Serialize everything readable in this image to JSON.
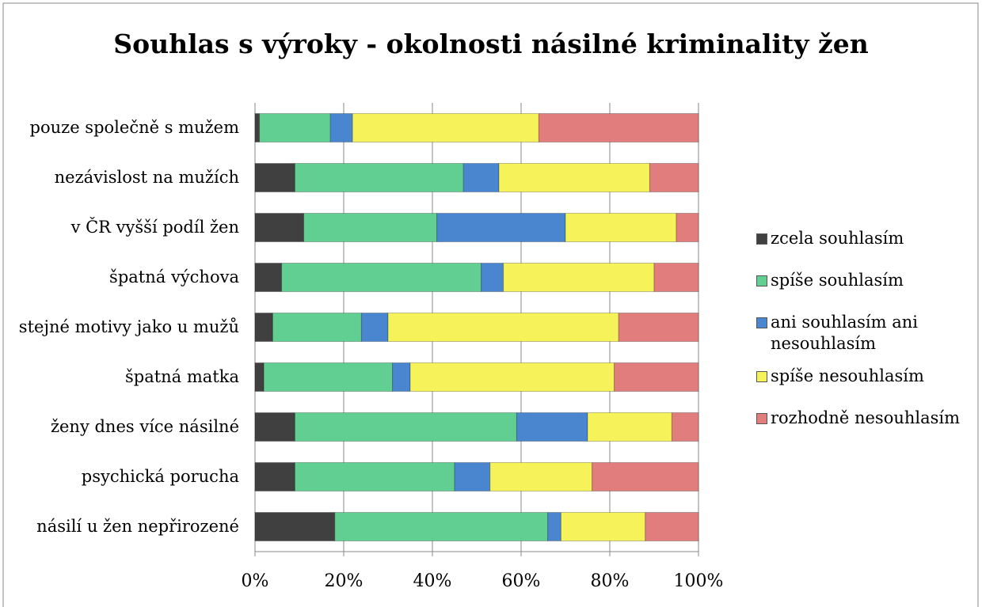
{
  "chart_data": {
    "type": "stacked-bar-horizontal",
    "title": "Souhlas s výroky - okolnosti násilné kriminality žen",
    "categories": [
      "pouze společně s mužem",
      "nezávislost na mužích",
      "v ČR vyšší podíl žen",
      "špatná výchova",
      "stejné motivy jako u mužů",
      "špatná matka",
      "ženy dnes více násilné",
      "psychická porucha",
      "násilí u žen nepřirozené"
    ],
    "series": [
      {
        "name": "zcela souhlasím",
        "color": "#404040",
        "values": [
          1,
          9,
          11,
          6,
          4,
          2,
          9,
          9,
          18
        ]
      },
      {
        "name": "spíše souhlasím",
        "color": "#62cf92",
        "values": [
          16,
          38,
          30,
          45,
          20,
          29,
          50,
          36,
          48
        ]
      },
      {
        "name": "ani souhlasím ani nesouhlasím",
        "color": "#4a86d0",
        "values": [
          5,
          8,
          29,
          5,
          6,
          4,
          16,
          8,
          3
        ]
      },
      {
        "name": "spíše nesouhlasím",
        "color": "#f6f25a",
        "values": [
          42,
          34,
          25,
          34,
          52,
          46,
          19,
          23,
          19
        ]
      },
      {
        "name": "rozhodně nesouhlasím",
        "color": "#e17d7d",
        "values": [
          36,
          11,
          5,
          10,
          18,
          19,
          6,
          24,
          12
        ]
      }
    ],
    "xlim": [
      0,
      100
    ],
    "xticks": [
      {
        "value": 0,
        "label": "0%"
      },
      {
        "value": 20,
        "label": "20%"
      },
      {
        "value": 40,
        "label": "40%"
      },
      {
        "value": 60,
        "label": "60%"
      },
      {
        "value": 80,
        "label": "80%"
      },
      {
        "value": 100,
        "label": "100%"
      }
    ],
    "grid": true,
    "legend": "right"
  }
}
